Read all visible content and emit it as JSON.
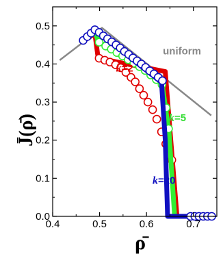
{
  "chart_data": {
    "type": "scatter",
    "xlabel": "ρ̄",
    "ylabel": "J̄(ρ̄)",
    "xlim": [
      0.4,
      0.75
    ],
    "ylim": [
      0.0,
      0.55
    ],
    "x_ticks": [
      "0.4",
      "0.5",
      "0.6",
      "0.7"
    ],
    "x_tick_values": [
      0.4,
      0.5,
      0.6,
      0.7
    ],
    "y_ticks": [
      "0.0",
      "0.1",
      "0.2",
      "0.3",
      "0.4",
      "0.5"
    ],
    "y_tick_values": [
      0.0,
      0.1,
      0.2,
      0.3,
      0.4,
      0.5
    ],
    "grid": false,
    "annotations": [
      {
        "text": "uniform",
        "color": "#888888",
        "x": 0.635,
        "y": 0.425
      },
      {
        "k": "k",
        "text": "=2",
        "color": "#e00000",
        "x": 0.535,
        "y": 0.38
      },
      {
        "k": "k",
        "text": "=5",
        "color": "#33dd33",
        "x": 0.648,
        "y": 0.25
      },
      {
        "k": "k",
        "text": "=20",
        "color": "#1010c0",
        "x": 0.613,
        "y": 0.085
      }
    ],
    "series": [
      {
        "name": "uniform",
        "kind": "line",
        "color": "#888888",
        "points": [
          [
            0.415,
            0.41
          ],
          [
            0.505,
            0.495
          ],
          [
            0.738,
            0.265
          ]
        ]
      },
      {
        "name": "k=2",
        "kind": "line+markers",
        "color": "#e00000",
        "line_points": [
          [
            0.465,
            0.46
          ],
          [
            0.49,
            0.48
          ],
          [
            0.497,
            0.415
          ],
          [
            0.64,
            0.38
          ],
          [
            0.655,
            0.15
          ],
          [
            0.665,
            0.0
          ],
          [
            0.74,
            0.0
          ]
        ],
        "markers": [
          [
            0.499,
            0.415
          ],
          [
            0.511,
            0.41
          ],
          [
            0.522,
            0.405
          ],
          [
            0.534,
            0.398
          ],
          [
            0.545,
            0.39
          ],
          [
            0.556,
            0.378
          ],
          [
            0.567,
            0.365
          ],
          [
            0.576,
            0.353
          ],
          [
            0.585,
            0.335
          ],
          [
            0.594,
            0.318
          ],
          [
            0.603,
            0.3
          ],
          [
            0.613,
            0.28
          ],
          [
            0.622,
            0.255
          ],
          [
            0.632,
            0.222
          ],
          [
            0.641,
            0.19
          ],
          [
            0.654,
            0.148
          ]
        ]
      },
      {
        "name": "k=5",
        "kind": "line+markers",
        "color": "#33ee33",
        "line_points": [
          [
            0.49,
            0.485
          ],
          [
            0.497,
            0.46
          ],
          [
            0.632,
            0.36
          ],
          [
            0.648,
            0.22
          ],
          [
            0.66,
            0.0
          ],
          [
            0.74,
            0.0
          ]
        ],
        "markers": [
          [
            0.499,
            0.457
          ],
          [
            0.513,
            0.447
          ],
          [
            0.525,
            0.439
          ],
          [
            0.537,
            0.43
          ],
          [
            0.549,
            0.421
          ],
          [
            0.561,
            0.411
          ],
          [
            0.573,
            0.402
          ],
          [
            0.585,
            0.393
          ],
          [
            0.597,
            0.383
          ],
          [
            0.609,
            0.371
          ],
          [
            0.621,
            0.359
          ],
          [
            0.633,
            0.346
          ],
          [
            0.642,
            0.285
          ],
          [
            0.647,
            0.23
          ]
        ]
      },
      {
        "name": "k=20",
        "kind": "line+markers",
        "color": "#1010c0",
        "line_points": [
          [
            0.46,
            0.46
          ],
          [
            0.49,
            0.49
          ],
          [
            0.632,
            0.352
          ],
          [
            0.64,
            0.2
          ],
          [
            0.645,
            0.0
          ],
          [
            0.74,
            0.0
          ]
        ],
        "markers": [
          [
            0.465,
            0.462
          ],
          [
            0.474,
            0.472
          ],
          [
            0.482,
            0.481
          ],
          [
            0.49,
            0.49
          ],
          [
            0.499,
            0.483
          ],
          [
            0.508,
            0.474
          ],
          [
            0.517,
            0.466
          ],
          [
            0.526,
            0.458
          ],
          [
            0.535,
            0.45
          ],
          [
            0.544,
            0.442
          ],
          [
            0.553,
            0.433
          ],
          [
            0.562,
            0.425
          ],
          [
            0.571,
            0.416
          ],
          [
            0.58,
            0.408
          ],
          [
            0.589,
            0.4
          ],
          [
            0.598,
            0.391
          ],
          [
            0.607,
            0.382
          ],
          [
            0.616,
            0.374
          ],
          [
            0.625,
            0.365
          ],
          [
            0.634,
            0.356
          ],
          [
            0.694,
            0.0
          ],
          [
            0.703,
            0.0
          ],
          [
            0.712,
            0.0
          ],
          [
            0.721,
            0.0
          ],
          [
            0.73,
            0.0
          ],
          [
            0.739,
            0.0
          ]
        ]
      }
    ]
  }
}
